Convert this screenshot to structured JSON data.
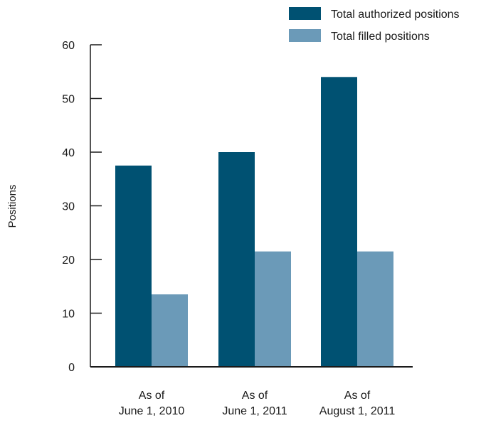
{
  "chart_data": {
    "type": "bar",
    "title": "",
    "xlabel": "",
    "ylabel": "Positions",
    "ylim": [
      0,
      60
    ],
    "yticks": [
      0,
      10,
      20,
      30,
      40,
      50,
      60
    ],
    "grid": false,
    "legend_position": "top-right",
    "categories": [
      [
        "As of",
        "June 1, 2010"
      ],
      [
        "As of",
        "June 1, 2011"
      ],
      [
        "As of",
        "August 1, 2011"
      ]
    ],
    "series": [
      {
        "name": "Total authorized positions",
        "color": "#005172",
        "values": [
          37.5,
          40,
          54
        ]
      },
      {
        "name": "Total filled positions",
        "color": "#6b9ab8",
        "values": [
          13.5,
          21.5,
          21.5
        ]
      }
    ]
  }
}
